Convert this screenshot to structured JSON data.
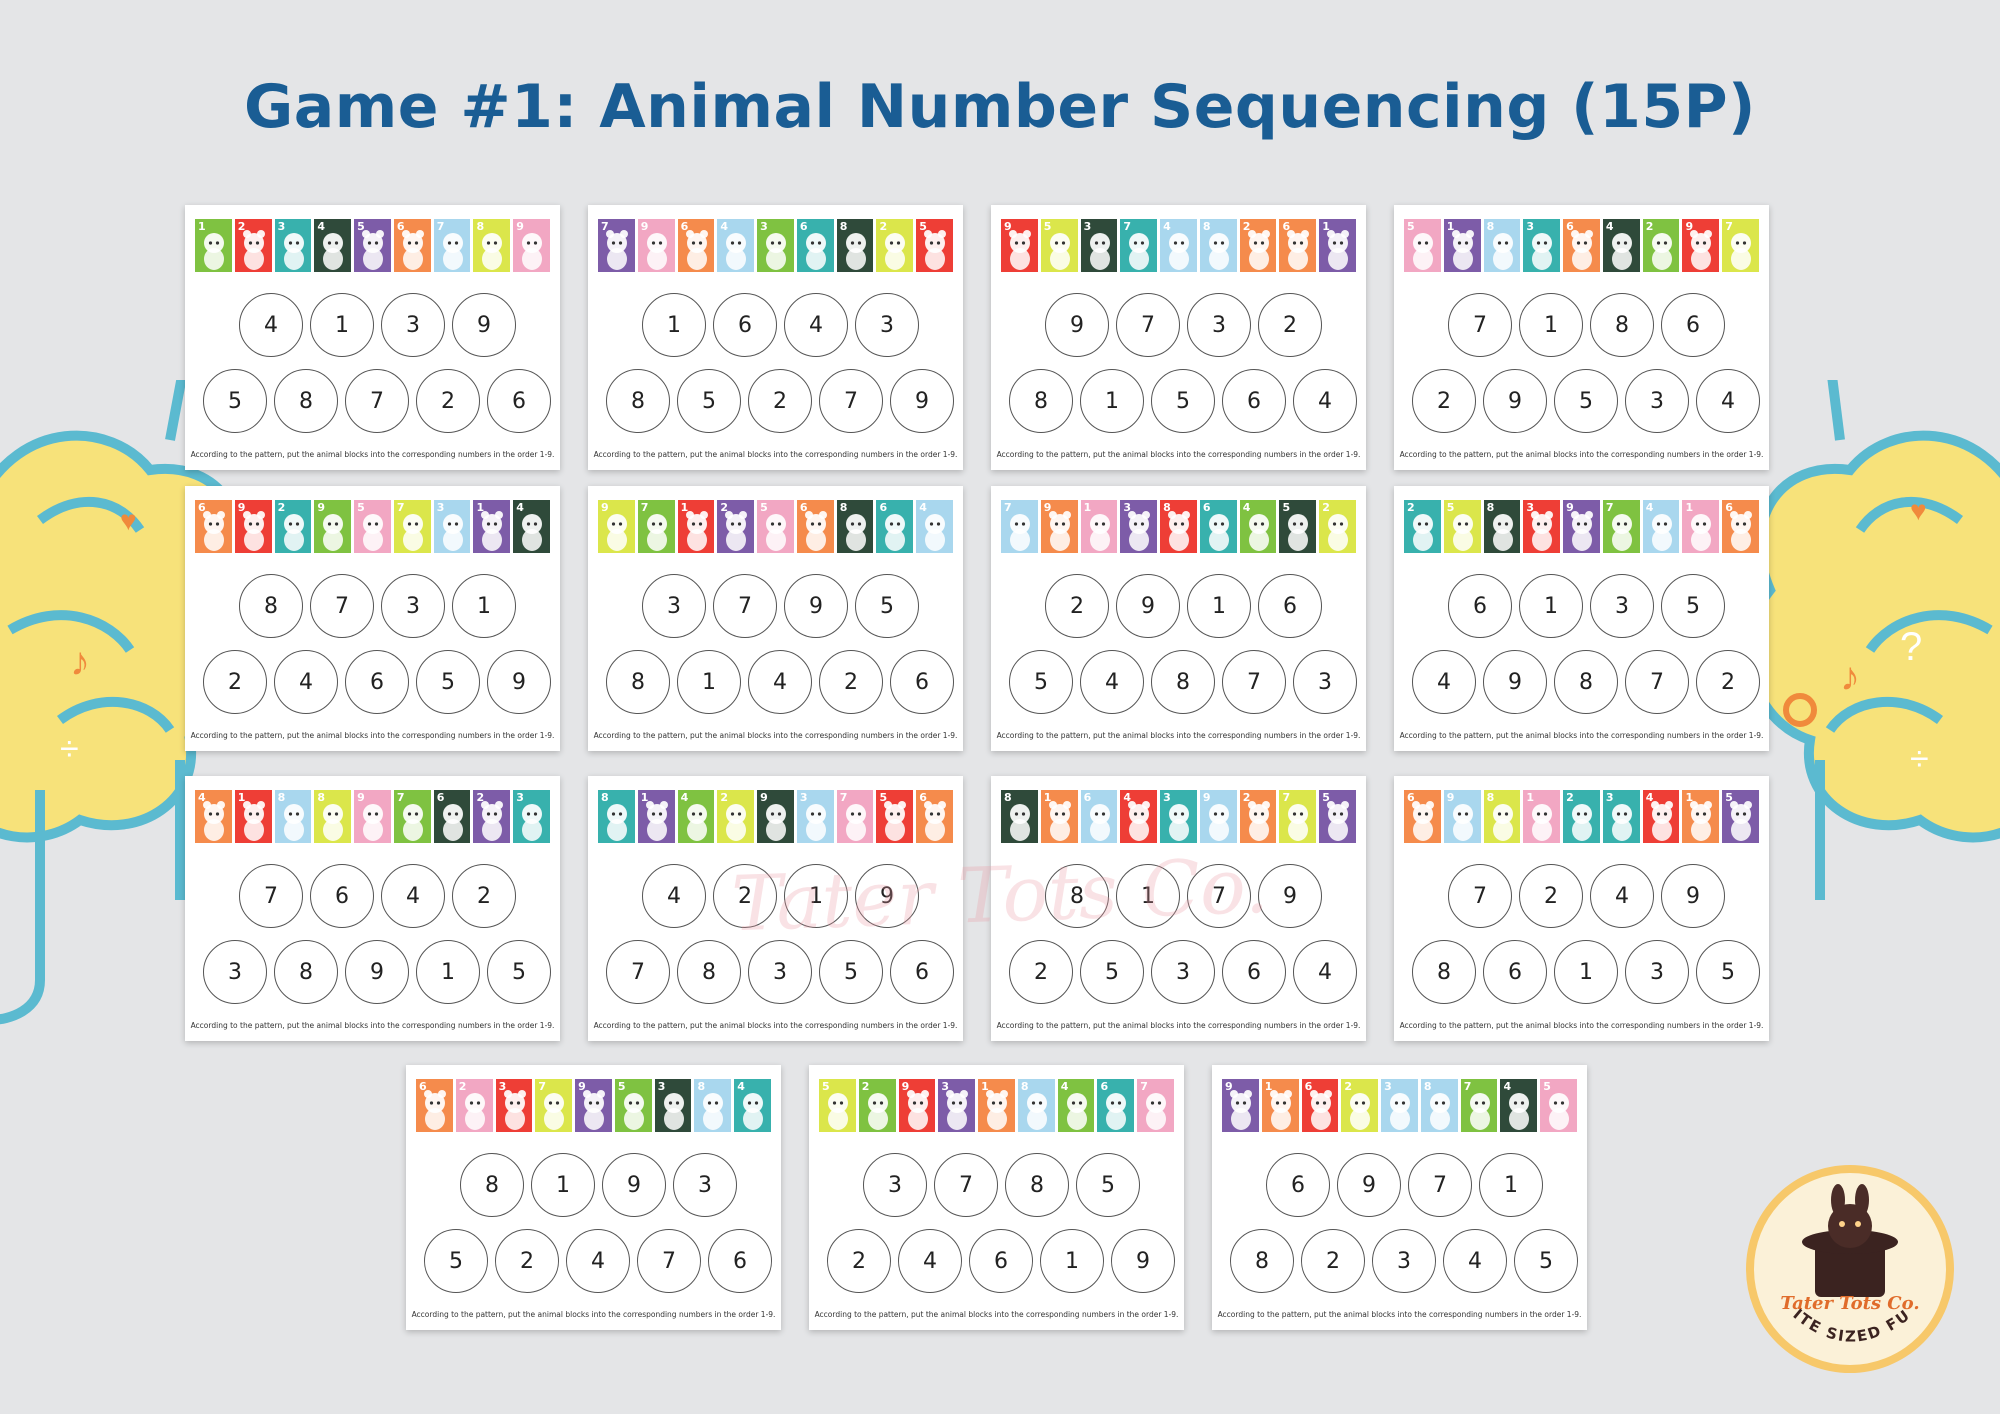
{
  "title": "Game #1: Animal Number Sequencing (15P)",
  "instruction": "According to the pattern, put the animal blocks into the corresponding numbers in the order 1-9.",
  "watermark": "Tater Tots Co.",
  "logo": {
    "name": "Tater Tots Co.",
    "tagline": "BITE SIZED FUN"
  },
  "colors": {
    "background": "#e4e5e7",
    "title": "#1a5d94",
    "brain_fill": "#f7e27a",
    "brain_line": "#5bbad0",
    "logo_ring": "#f7c86a",
    "logo_text": "#e06c2b"
  },
  "animal_colors": {
    "frog": "#7fc241",
    "fox": "#ee3e36",
    "duck": "#38b1ad",
    "croc": "#2f4a3a",
    "bear": "#7d5ca8",
    "rabbit": "#f58b4c",
    "sloth": "#a9d7ee",
    "skunk": "#dbe64b",
    "girl": "#f2a7c3",
    "owl": "#7b5aa6"
  },
  "cards": [
    {
      "tiles": [
        {
          "n": "1",
          "a": "frog"
        },
        {
          "n": "2",
          "a": "fox"
        },
        {
          "n": "3",
          "a": "duck"
        },
        {
          "n": "4",
          "a": "croc"
        },
        {
          "n": "5",
          "a": "bear"
        },
        {
          "n": "6",
          "a": "rabbit"
        },
        {
          "n": "7",
          "a": "sloth"
        },
        {
          "n": "8",
          "a": "skunk"
        },
        {
          "n": "9",
          "a": "girl"
        }
      ],
      "top": [
        "4",
        "1",
        "3",
        "9"
      ],
      "bottom": [
        "5",
        "8",
        "7",
        "2",
        "6"
      ]
    },
    {
      "tiles": [
        {
          "n": "7",
          "a": "bear"
        },
        {
          "n": "9",
          "a": "girl"
        },
        {
          "n": "6",
          "a": "rabbit"
        },
        {
          "n": "4",
          "a": "sloth"
        },
        {
          "n": "3",
          "a": "frog"
        },
        {
          "n": "6",
          "a": "duck"
        },
        {
          "n": "8",
          "a": "croc"
        },
        {
          "n": "2",
          "a": "skunk"
        },
        {
          "n": "5",
          "a": "fox"
        }
      ],
      "top": [
        "1",
        "6",
        "4",
        "3"
      ],
      "bottom": [
        "8",
        "5",
        "2",
        "7",
        "9"
      ]
    },
    {
      "tiles": [
        {
          "n": "9",
          "a": "fox"
        },
        {
          "n": "5",
          "a": "skunk"
        },
        {
          "n": "3",
          "a": "croc"
        },
        {
          "n": "7",
          "a": "duck"
        },
        {
          "n": "4",
          "a": "sloth"
        },
        {
          "n": "8",
          "a": "sloth"
        },
        {
          "n": "2",
          "a": "rabbit"
        },
        {
          "n": "6",
          "a": "rabbit"
        },
        {
          "n": "1",
          "a": "bear"
        }
      ],
      "top": [
        "9",
        "7",
        "3",
        "2"
      ],
      "bottom": [
        "8",
        "1",
        "5",
        "6",
        "4"
      ]
    },
    {
      "tiles": [
        {
          "n": "5",
          "a": "girl"
        },
        {
          "n": "1",
          "a": "bear"
        },
        {
          "n": "8",
          "a": "sloth"
        },
        {
          "n": "3",
          "a": "duck"
        },
        {
          "n": "6",
          "a": "rabbit"
        },
        {
          "n": "4",
          "a": "croc"
        },
        {
          "n": "2",
          "a": "frog"
        },
        {
          "n": "9",
          "a": "fox"
        },
        {
          "n": "7",
          "a": "skunk"
        }
      ],
      "top": [
        "7",
        "1",
        "8",
        "6"
      ],
      "bottom": [
        "2",
        "9",
        "5",
        "3",
        "4"
      ]
    },
    {
      "tiles": [
        {
          "n": "6",
          "a": "rabbit"
        },
        {
          "n": "9",
          "a": "fox"
        },
        {
          "n": "2",
          "a": "duck"
        },
        {
          "n": "9",
          "a": "frog"
        },
        {
          "n": "5",
          "a": "girl"
        },
        {
          "n": "7",
          "a": "skunk"
        },
        {
          "n": "3",
          "a": "sloth"
        },
        {
          "n": "1",
          "a": "bear"
        },
        {
          "n": "4",
          "a": "croc"
        }
      ],
      "top": [
        "8",
        "7",
        "3",
        "1"
      ],
      "bottom": [
        "2",
        "4",
        "6",
        "5",
        "9"
      ]
    },
    {
      "tiles": [
        {
          "n": "9",
          "a": "skunk"
        },
        {
          "n": "7",
          "a": "frog"
        },
        {
          "n": "1",
          "a": "fox"
        },
        {
          "n": "2",
          "a": "bear"
        },
        {
          "n": "5",
          "a": "girl"
        },
        {
          "n": "6",
          "a": "rabbit"
        },
        {
          "n": "8",
          "a": "croc"
        },
        {
          "n": "6",
          "a": "duck"
        },
        {
          "n": "4",
          "a": "sloth"
        }
      ],
      "top": [
        "3",
        "7",
        "9",
        "5"
      ],
      "bottom": [
        "8",
        "1",
        "4",
        "2",
        "6"
      ]
    },
    {
      "tiles": [
        {
          "n": "7",
          "a": "sloth"
        },
        {
          "n": "9",
          "a": "rabbit"
        },
        {
          "n": "1",
          "a": "girl"
        },
        {
          "n": "3",
          "a": "bear"
        },
        {
          "n": "8",
          "a": "fox"
        },
        {
          "n": "6",
          "a": "duck"
        },
        {
          "n": "4",
          "a": "frog"
        },
        {
          "n": "5",
          "a": "croc"
        },
        {
          "n": "2",
          "a": "skunk"
        }
      ],
      "top": [
        "2",
        "9",
        "1",
        "6"
      ],
      "bottom": [
        "5",
        "4",
        "8",
        "7",
        "3"
      ]
    },
    {
      "tiles": [
        {
          "n": "2",
          "a": "duck"
        },
        {
          "n": "5",
          "a": "skunk"
        },
        {
          "n": "8",
          "a": "croc"
        },
        {
          "n": "3",
          "a": "fox"
        },
        {
          "n": "9",
          "a": "bear"
        },
        {
          "n": "7",
          "a": "frog"
        },
        {
          "n": "4",
          "a": "sloth"
        },
        {
          "n": "1",
          "a": "girl"
        },
        {
          "n": "6",
          "a": "rabbit"
        }
      ],
      "top": [
        "6",
        "1",
        "3",
        "5"
      ],
      "bottom": [
        "4",
        "9",
        "8",
        "7",
        "2"
      ]
    },
    {
      "tiles": [
        {
          "n": "4",
          "a": "rabbit"
        },
        {
          "n": "1",
          "a": "fox"
        },
        {
          "n": "8",
          "a": "sloth"
        },
        {
          "n": "8",
          "a": "skunk"
        },
        {
          "n": "9",
          "a": "girl"
        },
        {
          "n": "7",
          "a": "frog"
        },
        {
          "n": "6",
          "a": "croc"
        },
        {
          "n": "2",
          "a": "bear"
        },
        {
          "n": "3",
          "a": "duck"
        }
      ],
      "top": [
        "7",
        "6",
        "4",
        "2"
      ],
      "bottom": [
        "3",
        "8",
        "9",
        "1",
        "5"
      ]
    },
    {
      "tiles": [
        {
          "n": "8",
          "a": "duck"
        },
        {
          "n": "1",
          "a": "bear"
        },
        {
          "n": "4",
          "a": "frog"
        },
        {
          "n": "2",
          "a": "skunk"
        },
        {
          "n": "9",
          "a": "croc"
        },
        {
          "n": "3",
          "a": "sloth"
        },
        {
          "n": "7",
          "a": "girl"
        },
        {
          "n": "5",
          "a": "fox"
        },
        {
          "n": "6",
          "a": "rabbit"
        }
      ],
      "top": [
        "4",
        "2",
        "1",
        "9"
      ],
      "bottom": [
        "7",
        "8",
        "3",
        "5",
        "6"
      ]
    },
    {
      "tiles": [
        {
          "n": "8",
          "a": "croc"
        },
        {
          "n": "1",
          "a": "rabbit"
        },
        {
          "n": "6",
          "a": "sloth"
        },
        {
          "n": "4",
          "a": "fox"
        },
        {
          "n": "3",
          "a": "duck"
        },
        {
          "n": "9",
          "a": "sloth"
        },
        {
          "n": "2",
          "a": "rabbit"
        },
        {
          "n": "7",
          "a": "skunk"
        },
        {
          "n": "5",
          "a": "bear"
        }
      ],
      "top": [
        "8",
        "1",
        "7",
        "9"
      ],
      "bottom": [
        "2",
        "5",
        "3",
        "6",
        "4"
      ]
    },
    {
      "tiles": [
        {
          "n": "6",
          "a": "rabbit"
        },
        {
          "n": "9",
          "a": "sloth"
        },
        {
          "n": "8",
          "a": "skunk"
        },
        {
          "n": "1",
          "a": "girl"
        },
        {
          "n": "2",
          "a": "duck"
        },
        {
          "n": "3",
          "a": "duck"
        },
        {
          "n": "4",
          "a": "fox"
        },
        {
          "n": "1",
          "a": "rabbit"
        },
        {
          "n": "5",
          "a": "bear"
        }
      ],
      "top": [
        "7",
        "2",
        "4",
        "9"
      ],
      "bottom": [
        "8",
        "6",
        "1",
        "3",
        "5"
      ]
    },
    {
      "tiles": [
        {
          "n": "6",
          "a": "rabbit"
        },
        {
          "n": "2",
          "a": "girl"
        },
        {
          "n": "3",
          "a": "fox"
        },
        {
          "n": "7",
          "a": "skunk"
        },
        {
          "n": "9",
          "a": "bear"
        },
        {
          "n": "5",
          "a": "frog"
        },
        {
          "n": "3",
          "a": "croc"
        },
        {
          "n": "8",
          "a": "sloth"
        },
        {
          "n": "4",
          "a": "duck"
        }
      ],
      "top": [
        "8",
        "1",
        "9",
        "3"
      ],
      "bottom": [
        "5",
        "2",
        "4",
        "7",
        "6"
      ]
    },
    {
      "tiles": [
        {
          "n": "5",
          "a": "skunk"
        },
        {
          "n": "2",
          "a": "frog"
        },
        {
          "n": "9",
          "a": "fox"
        },
        {
          "n": "3",
          "a": "bear"
        },
        {
          "n": "1",
          "a": "rabbit"
        },
        {
          "n": "8",
          "a": "sloth"
        },
        {
          "n": "4",
          "a": "frog"
        },
        {
          "n": "6",
          "a": "duck"
        },
        {
          "n": "7",
          "a": "girl"
        }
      ],
      "top": [
        "3",
        "7",
        "8",
        "5"
      ],
      "bottom": [
        "2",
        "4",
        "6",
        "1",
        "9"
      ]
    },
    {
      "tiles": [
        {
          "n": "9",
          "a": "bear"
        },
        {
          "n": "1",
          "a": "rabbit"
        },
        {
          "n": "6",
          "a": "fox"
        },
        {
          "n": "2",
          "a": "skunk"
        },
        {
          "n": "3",
          "a": "sloth"
        },
        {
          "n": "8",
          "a": "sloth"
        },
        {
          "n": "7",
          "a": "frog"
        },
        {
          "n": "4",
          "a": "croc"
        },
        {
          "n": "5",
          "a": "girl"
        }
      ],
      "top": [
        "6",
        "9",
        "7",
        "1"
      ],
      "bottom": [
        "8",
        "2",
        "3",
        "4",
        "5"
      ]
    }
  ]
}
